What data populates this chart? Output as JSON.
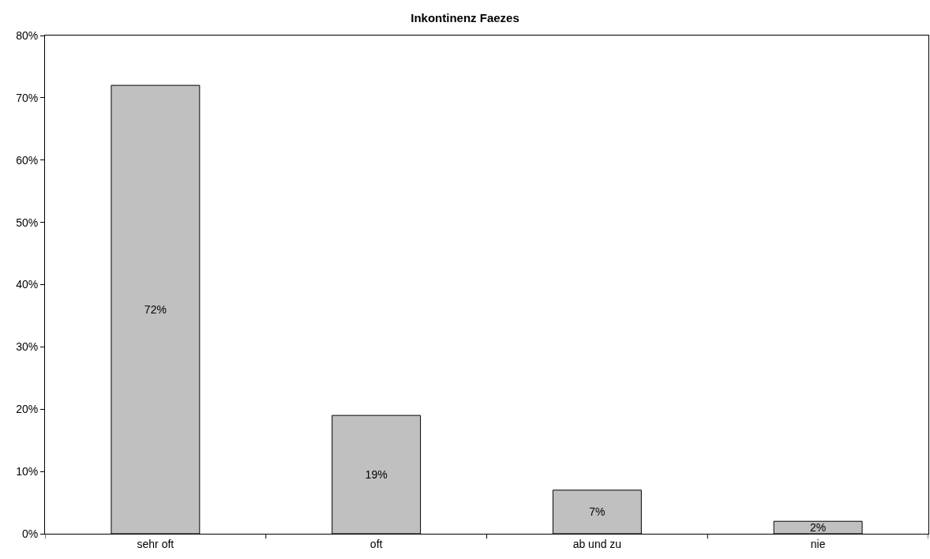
{
  "chart_data": {
    "type": "bar",
    "title": "Inkontinenz Faezes",
    "categories": [
      "sehr oft",
      "oft",
      "ab und zu",
      "nie"
    ],
    "values": [
      72,
      19,
      7,
      2
    ],
    "value_labels": [
      "72%",
      "19%",
      "7%",
      "2%"
    ],
    "color": "#c0c0c0",
    "ylim": [
      0,
      80
    ],
    "yticks": [
      {
        "value": 0,
        "label": "0%"
      },
      {
        "value": 10,
        "label": "10%"
      },
      {
        "value": 20,
        "label": "20%"
      },
      {
        "value": 30,
        "label": "30%"
      },
      {
        "value": 40,
        "label": "40%"
      },
      {
        "value": 50,
        "label": "50%"
      },
      {
        "value": 60,
        "label": "60%"
      },
      {
        "value": 70,
        "label": "70%"
      },
      {
        "value": 80,
        "label": "80%"
      }
    ],
    "grid": false,
    "legend": false
  }
}
